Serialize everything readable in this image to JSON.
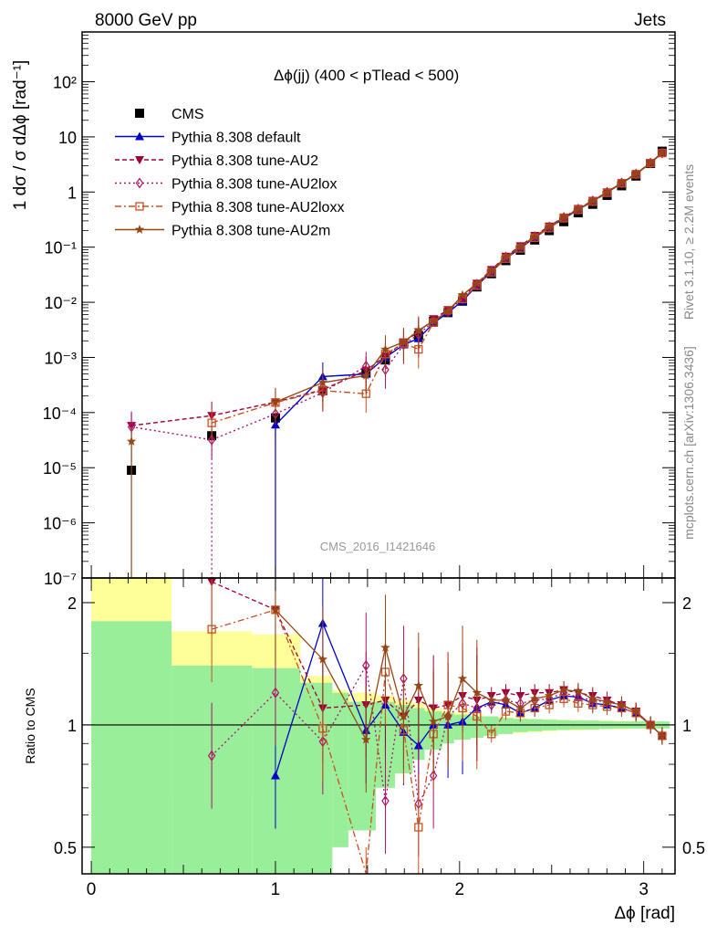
{
  "header": {
    "left": "8000 GeV pp",
    "right": "Jets"
  },
  "side_labels": {
    "rivet": "Rivet 3.1.10, ≥ 2.2M events",
    "mcplots": "mcplots.cern.ch [arXiv:1306.3436]"
  },
  "watermark": "CMS_2016_I1421646",
  "chart_data": [
    {
      "type": "line",
      "title": "Δϕ(jj) (400 < pTlead <  500)",
      "xlabel": "Δϕ [rad]",
      "ylabel": "1 dσ / σ dΔϕ [rad⁻¹]",
      "xlim": [
        -0.05,
        3.17
      ],
      "ylim": [
        1e-07,
        800
      ],
      "yscale": "log",
      "x_ticks": [
        "0",
        "1",
        "2",
        "3"
      ],
      "y_ticks": [
        "10⁻⁷",
        "10⁻⁶",
        "10⁻⁵",
        "10⁻⁴",
        "10⁻³",
        "10⁻²",
        "10⁻¹",
        "1",
        "10",
        "10²"
      ],
      "legend_position": "top-left",
      "x": [
        0.218,
        0.654,
        1.0,
        1.257,
        1.492,
        1.597,
        1.696,
        1.777,
        1.858,
        1.937,
        2.016,
        2.094,
        2.173,
        2.251,
        2.33,
        2.408,
        2.487,
        2.566,
        2.644,
        2.723,
        2.801,
        2.88,
        2.958,
        3.037,
        3.1
      ],
      "series": [
        {
          "name": "CMS",
          "color": "#000000",
          "marker": "square",
          "values": [
            9e-06,
            3.8e-05,
            8e-05,
            0.00025,
            0.00052,
            0.0009,
            0.0018,
            0.0025,
            0.0045,
            0.0065,
            0.0105,
            0.019,
            0.033,
            0.057,
            0.088,
            0.135,
            0.2,
            0.29,
            0.42,
            0.6,
            0.87,
            1.3,
            1.95,
            3.3,
            5.5
          ]
        },
        {
          "name": "Pythia 8.308 default",
          "color": "#0000cc",
          "marker": "triangle-up",
          "values": [
            null,
            null,
            6e-05,
            0.00045,
            0.0005,
            0.001,
            0.0017,
            0.0022,
            0.0042,
            0.0065,
            0.0106,
            0.02,
            0.036,
            0.062,
            0.096,
            0.15,
            0.225,
            0.33,
            0.48,
            0.68,
            0.98,
            1.45,
            2.1,
            3.4,
            5.2
          ]
        },
        {
          "name": "Pythia 8.308 tune-AU2",
          "color": "#a0003a",
          "marker": "triangle-down",
          "values": [
            5.8e-05,
            8.8e-05,
            0.000155,
            0.00026,
            0.00058,
            0.00105,
            0.0019,
            0.0029,
            0.005,
            0.0073,
            0.0125,
            0.022,
            0.039,
            0.068,
            0.105,
            0.162,
            0.24,
            0.35,
            0.5,
            0.7,
            1.0,
            1.48,
            2.15,
            3.4,
            5.1
          ]
        },
        {
          "name": "Pythia 8.308 tune-AU2lox",
          "color": "#b0106a",
          "marker": "diamond",
          "values": [
            5.5e-05,
            3.2e-05,
            9.5e-05,
            0.00023,
            0.0007,
            0.0006,
            0.0017,
            0.0026,
            0.0045,
            0.0068,
            0.0118,
            0.021,
            0.037,
            0.066,
            0.1,
            0.155,
            0.232,
            0.345,
            0.49,
            0.69,
            0.99,
            1.46,
            2.12,
            3.35,
            5.1
          ]
        },
        {
          "name": "Pythia 8.308 tune-AU2loxx",
          "color": "#c8501e",
          "marker": "open-square",
          "values": [
            null,
            6.5e-05,
            0.000152,
            0.00025,
            0.00022,
            0.00115,
            0.0018,
            0.0014,
            0.0043,
            0.0072,
            0.0115,
            0.02,
            0.035,
            0.062,
            0.095,
            0.148,
            0.222,
            0.335,
            0.475,
            0.67,
            0.97,
            1.44,
            2.1,
            3.35,
            5.1
          ]
        },
        {
          "name": "Pythia 8.308 tune-AU2m",
          "color": "#964614",
          "marker": "star",
          "values": [
            3e-05,
            null,
            0.000155,
            0.00035,
            0.00047,
            0.0014,
            0.0019,
            0.0031,
            0.0046,
            0.0068,
            0.0135,
            0.022,
            0.037,
            0.066,
            0.101,
            0.156,
            0.234,
            0.345,
            0.49,
            0.69,
            0.99,
            1.47,
            2.13,
            3.38,
            5.15
          ]
        }
      ]
    },
    {
      "type": "line",
      "xlabel": "Δϕ [rad]",
      "ylabel": "Ratio to CMS",
      "xlim": [
        -0.05,
        3.17
      ],
      "ylim": [
        0.43,
        2.3
      ],
      "yscale": "log",
      "y_ticks": [
        "0.5",
        "1",
        "2"
      ],
      "x": [
        0.218,
        0.654,
        1.0,
        1.257,
        1.492,
        1.597,
        1.696,
        1.777,
        1.858,
        1.937,
        2.016,
        2.094,
        2.173,
        2.251,
        2.33,
        2.408,
        2.487,
        2.566,
        2.644,
        2.723,
        2.801,
        2.88,
        2.958,
        3.037,
        3.1
      ],
      "series": [
        {
          "name": "Pythia 8.308 default",
          "values": [
            null,
            null,
            0.75,
            1.78,
            0.97,
            1.12,
            0.96,
            0.89,
            1.0,
            1.0,
            1.02,
            1.1,
            1.14,
            1.12,
            1.07,
            1.1,
            1.15,
            1.18,
            1.17,
            1.13,
            1.12,
            1.1,
            1.07,
            1.0,
            0.94
          ]
        },
        {
          "name": "Pythia 8.308 tune-AU2",
          "values": [
            null,
            2.25,
            1.92,
            1.1,
            1.12,
            1.15,
            1.05,
            1.15,
            1.1,
            1.12,
            1.18,
            1.15,
            1.18,
            1.2,
            1.18,
            1.2,
            1.2,
            1.22,
            1.2,
            1.18,
            1.15,
            1.12,
            1.08,
            1.0,
            0.94
          ]
        },
        {
          "name": "Pythia 8.308 tune-AU2lox",
          "values": [
            null,
            0.84,
            1.2,
            0.91,
            1.4,
            0.65,
            1.3,
            0.64,
            0.75,
            1.05,
            1.13,
            1.1,
            1.12,
            1.15,
            1.13,
            1.15,
            1.16,
            1.2,
            1.17,
            1.15,
            1.14,
            1.12,
            1.08,
            1.0,
            0.94
          ]
        },
        {
          "name": "Pythia 8.308 tune-AU2loxx",
          "values": [
            null,
            1.72,
            1.92,
            0.98,
            0.37,
            1.35,
            0.97,
            0.56,
            0.95,
            1.12,
            1.1,
            1.05,
            0.95,
            1.08,
            1.07,
            1.1,
            1.12,
            1.16,
            1.13,
            1.12,
            1.11,
            1.1,
            1.07,
            1.0,
            0.94
          ]
        },
        {
          "name": "Pythia 8.308 tune-AU2m",
          "values": [
            null,
            null,
            1.92,
            1.45,
            0.92,
            1.55,
            1.05,
            1.25,
            1.02,
            1.05,
            1.3,
            1.2,
            1.15,
            1.15,
            1.1,
            1.16,
            1.18,
            1.22,
            1.21,
            1.16,
            1.14,
            1.12,
            1.08,
            1.0,
            0.94
          ]
        }
      ],
      "bands": {
        "x_edges": [
          0.0,
          0.436,
          0.873,
          1.134,
          1.309,
          1.396,
          1.545,
          1.649,
          1.745,
          1.81,
          1.905,
          1.97,
          2.06,
          2.13,
          2.21,
          2.29,
          2.37,
          2.45,
          2.53,
          2.6,
          2.68,
          2.76,
          2.84,
          2.92,
          3.0,
          3.07,
          3.14
        ],
        "green_lo": [
          0.43,
          0.43,
          0.43,
          0.43,
          0.5,
          0.55,
          0.7,
          0.76,
          0.82,
          0.87,
          0.9,
          0.92,
          0.93,
          0.94,
          0.95,
          0.96,
          0.965,
          0.97,
          0.972,
          0.975,
          0.975,
          0.978,
          0.98,
          0.98,
          0.98,
          0.98
        ],
        "green_hi": [
          1.8,
          1.4,
          1.38,
          1.27,
          1.2,
          1.14,
          1.14,
          1.12,
          1.1,
          1.08,
          1.07,
          1.06,
          1.05,
          1.05,
          1.04,
          1.035,
          1.033,
          1.03,
          1.028,
          1.025,
          1.025,
          1.022,
          1.02,
          1.02,
          1.02,
          1.02
        ],
        "yellow_lo": [
          0.43,
          0.67,
          0.67,
          0.43,
          0.67,
          0.7,
          0.72,
          0.8,
          0.85,
          0.88,
          0.9,
          0.92,
          0.93,
          0.94,
          0.95,
          0.955,
          0.96,
          0.965,
          0.97,
          0.97,
          0.972,
          0.975,
          0.975,
          0.978,
          0.98,
          0.98
        ],
        "yellow_hi": [
          2.3,
          1.7,
          1.67,
          1.32,
          1.22,
          1.2,
          1.18,
          1.15,
          1.13,
          1.1,
          1.08,
          1.07,
          1.06,
          1.05,
          1.045,
          1.04,
          1.035,
          1.033,
          1.03,
          1.028,
          1.026,
          1.025,
          1.023,
          1.022,
          1.02,
          1.02
        ]
      }
    }
  ]
}
